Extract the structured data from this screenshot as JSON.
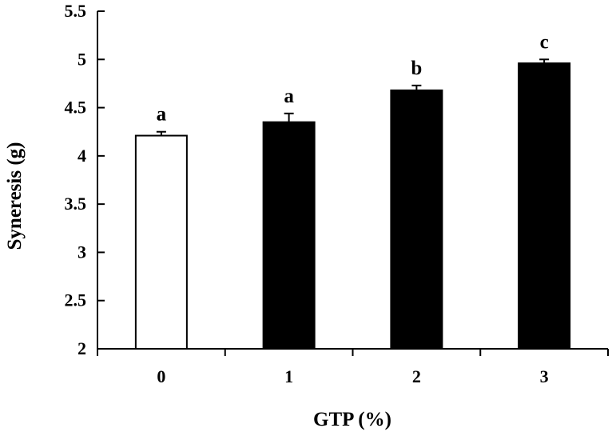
{
  "chart_data": {
    "type": "bar",
    "title": "",
    "xlabel": "GTP (%)",
    "ylabel": "Syneresis (g)",
    "categories": [
      "0",
      "1",
      "2",
      "3"
    ],
    "values": [
      4.21,
      4.35,
      4.68,
      4.96
    ],
    "errors": [
      0.04,
      0.09,
      0.05,
      0.04
    ],
    "significance_labels": [
      "a",
      "a",
      "b",
      "c"
    ],
    "bar_fill_colors": [
      "#ffffff",
      "#000000",
      "#000000",
      "#000000"
    ],
    "bar_edge_color": "#000000",
    "ylim": [
      2,
      5.5
    ],
    "yticks": [
      2,
      2.5,
      3,
      3.5,
      4,
      4.5,
      5,
      5.5
    ],
    "ytick_labels": [
      "2",
      "2.5",
      "3",
      "3.5",
      "4",
      "4.5",
      "5",
      "5.5"
    ],
    "grid": false,
    "legend": "none"
  }
}
